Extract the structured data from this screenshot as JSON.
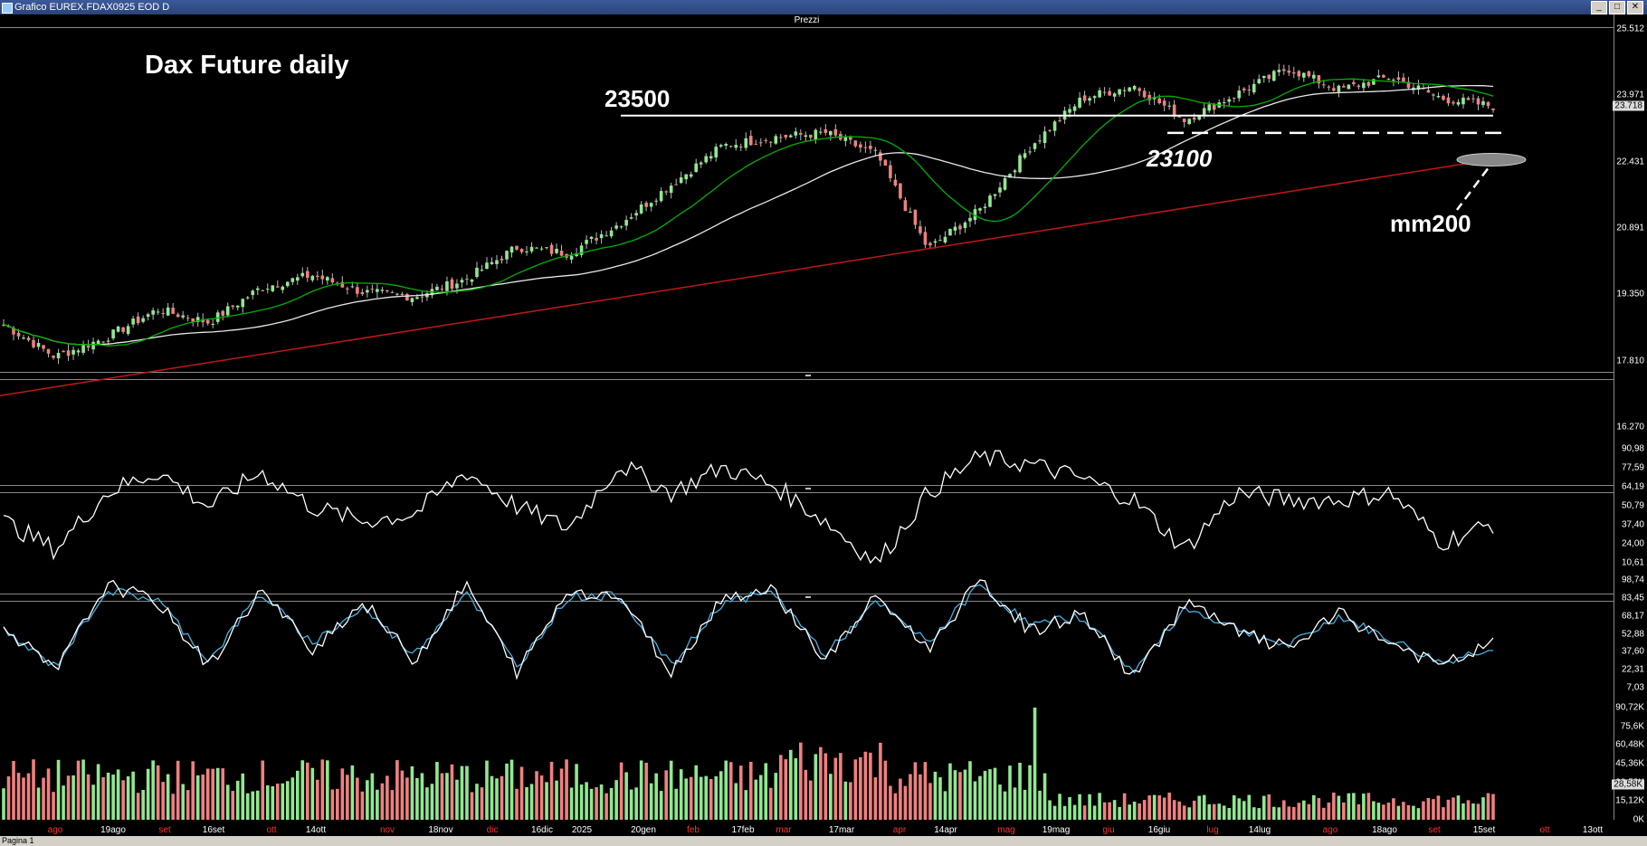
{
  "window": {
    "title": "Grafico EUREX.FDAX0925 EOD D",
    "buttons": [
      "_",
      "□",
      "✕"
    ]
  },
  "main_panel": {
    "label": "Prezzi"
  },
  "annotations": {
    "title": "Dax Future daily",
    "level_high": "23500",
    "level_low": "23100",
    "ma_label": "mm200"
  },
  "status_bar": {
    "tab": "Pagina 1"
  },
  "colors": {
    "up": "#90e890",
    "down": "#f08080",
    "ma_fast": "#00b000",
    "ma_slow": "#e8e8e8",
    "ma200": "#c01818",
    "osc": "#ffffff",
    "stoch_k": "#ffffff",
    "stoch_d": "#4ab0e0"
  },
  "price_axis": [
    "25.512",
    "23.971",
    "22.431",
    "20.891",
    "19.350",
    "17.810",
    "16.270"
  ],
  "price_current": "23.718",
  "osc1_axis": [
    "90,98",
    "77,59",
    "64,19",
    "50,79",
    "37,40",
    "24,00",
    "10,61"
  ],
  "osc2_axis": [
    "98,74",
    "83,45",
    "68,17",
    "52,88",
    "37,60",
    "22,31",
    "7,03"
  ],
  "volume_axis": [
    "90,72K",
    "75,6K",
    "60,48K",
    "45,36K",
    "28,58K",
    "15,12K",
    "0K"
  ],
  "volume_current": "28,58K",
  "date_labels": [
    {
      "text": "ago",
      "red": true
    },
    {
      "text": "19ago",
      "red": false
    },
    {
      "text": "set",
      "red": true
    },
    {
      "text": "16set",
      "red": false
    },
    {
      "text": "ott",
      "red": true
    },
    {
      "text": "14ott",
      "red": false
    },
    {
      "text": "nov",
      "red": true
    },
    {
      "text": "18nov",
      "red": false
    },
    {
      "text": "dic",
      "red": true
    },
    {
      "text": "16dic",
      "red": false
    },
    {
      "text": "2025",
      "red": false
    },
    {
      "text": "20gen",
      "red": false
    },
    {
      "text": "feb",
      "red": true
    },
    {
      "text": "17feb",
      "red": false
    },
    {
      "text": "mar",
      "red": true
    },
    {
      "text": "17mar",
      "red": false
    },
    {
      "text": "apr",
      "red": true
    },
    {
      "text": "14apr",
      "red": false
    },
    {
      "text": "mag",
      "red": true
    },
    {
      "text": "19mag",
      "red": false
    },
    {
      "text": "giu",
      "red": true
    },
    {
      "text": "16giu",
      "red": false
    },
    {
      "text": "lug",
      "red": true
    },
    {
      "text": "14lug",
      "red": false
    },
    {
      "text": "ago",
      "red": true
    },
    {
      "text": "18ago",
      "red": false
    },
    {
      "text": "set",
      "red": true
    },
    {
      "text": "15set",
      "red": false
    },
    {
      "text": "ott",
      "red": true
    },
    {
      "text": "13ott",
      "red": false
    }
  ],
  "chart_data": [
    {
      "type": "candlestick",
      "title": "Dax Future daily",
      "ylim": [
        16270,
        25512
      ],
      "x": [
        "2024-07-15",
        "2024-08-01",
        "2024-08-19",
        "2024-09-02",
        "2024-09-16",
        "2024-10-01",
        "2024-10-14",
        "2024-11-01",
        "2024-11-18",
        "2024-12-02",
        "2024-12-16",
        "2025-01-02",
        "2025-01-20",
        "2025-02-03",
        "2025-02-17",
        "2025-03-03",
        "2025-03-17",
        "2025-04-01",
        "2025-04-08",
        "2025-04-14",
        "2025-05-02",
        "2025-05-19",
        "2025-06-02",
        "2025-06-16",
        "2025-07-01",
        "2025-07-14",
        "2025-08-01",
        "2025-08-18",
        "2025-09-01",
        "2025-09-12"
      ],
      "close": [
        18650,
        17900,
        18350,
        19000,
        18700,
        19500,
        19800,
        19400,
        19300,
        19700,
        20450,
        20300,
        21000,
        21900,
        22800,
        23000,
        23100,
        22600,
        20400,
        21300,
        22800,
        23900,
        24200,
        23400,
        24000,
        24600,
        24100,
        24400,
        23900,
        23718
      ],
      "annotations": [
        "23500",
        "23100",
        "mm200"
      ],
      "levels": [
        23500,
        23100
      ]
    },
    {
      "type": "line",
      "series": [
        {
          "values": [
            40,
            20,
            60,
            75,
            50,
            75,
            50,
            40,
            45,
            75,
            50,
            35,
            80,
            60,
            78,
            65,
            40,
            10,
            60,
            85,
            80,
            70,
            55,
            20,
            60,
            55,
            55,
            60,
            25,
            38
          ]
        }
      ],
      "ylim": [
        10.61,
        90.98
      ]
    },
    {
      "type": "line",
      "series": [
        {
          "values": [
            60,
            20,
            95,
            80,
            25,
            90,
            40,
            80,
            30,
            95,
            20,
            90,
            85,
            20,
            85,
            90,
            30,
            85,
            40,
            98,
            55,
            70,
            15,
            80,
            55,
            40,
            70,
            45,
            25,
            45
          ]
        },
        {
          "values": [
            55,
            25,
            90,
            82,
            30,
            88,
            45,
            75,
            35,
            90,
            25,
            85,
            85,
            25,
            80,
            88,
            35,
            80,
            45,
            95,
            60,
            68,
            20,
            75,
            58,
            42,
            68,
            48,
            28,
            42
          ]
        }
      ],
      "ylim": [
        7.03,
        98.74
      ]
    },
    {
      "type": "bar",
      "ylabel": "Volume",
      "ylim": [
        0,
        90720
      ],
      "max_value": 90720
    }
  ]
}
